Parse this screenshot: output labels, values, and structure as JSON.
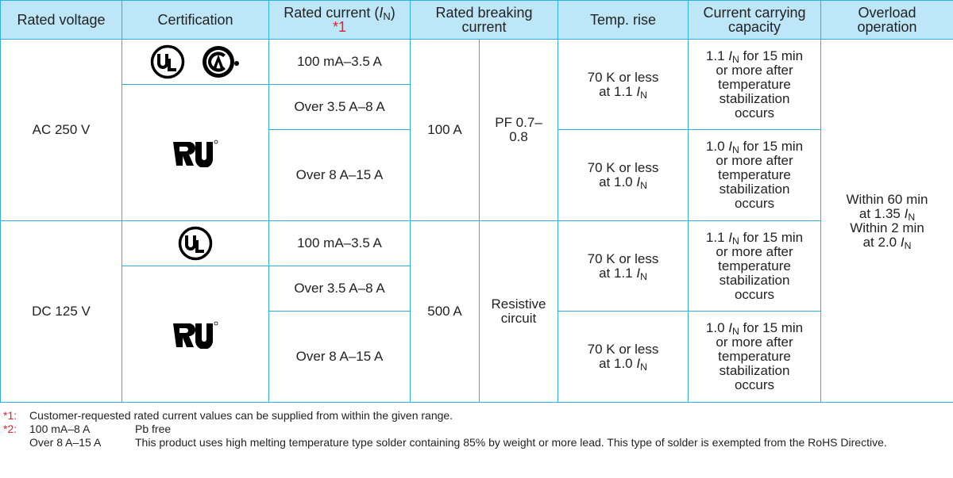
{
  "table": {
    "headers": {
      "voltage": "Rated voltage",
      "certification": "Certification",
      "current": [
        [
          "Rated current (",
          {
            "italic": "I"
          },
          {
            "sub": "N"
          },
          ")"
        ],
        [
          {
            "note": "*1"
          }
        ]
      ],
      "breaking": "Rated breaking current",
      "temp": "Temp. rise",
      "capacity": "Current carrying capacity",
      "overload": "Overload operation"
    },
    "rows": [
      {
        "voltage": "AC 250 V",
        "breaking": "100 A",
        "condition": "PF 0.7–0.8",
        "currents": [
          "100 mA–3.5 A",
          "Over 3.5 A–8 A",
          "Over 8 A–15 A"
        ],
        "temp": [
          [
            [
              "70 K or less"
            ],
            [
              "at 1.1 ",
              {
                "italic": "I"
              },
              {
                "sub": "N"
              }
            ]
          ],
          [
            [
              "70 K or less"
            ],
            [
              "at 1.0 ",
              {
                "italic": "I"
              },
              {
                "sub": "N"
              }
            ]
          ]
        ],
        "capacity": [
          [
            [
              "1.1 ",
              {
                "italic": "I"
              },
              {
                "sub": "N"
              },
              " for 15 min"
            ],
            [
              "or more after"
            ],
            [
              "temperature"
            ],
            [
              "stabilization"
            ],
            [
              "occurs"
            ]
          ],
          [
            [
              "1.0 ",
              {
                "italic": "I"
              },
              {
                "sub": "N"
              },
              " for 15 min"
            ],
            [
              "or more after"
            ],
            [
              "temperature"
            ],
            [
              "stabilization"
            ],
            [
              "occurs"
            ]
          ]
        ]
      },
      {
        "voltage": "DC 125 V",
        "breaking": "500 A",
        "condition": "Resistive circuit",
        "currents": [
          "100 mA–3.5 A",
          "Over 3.5 A–8 A",
          "Over 8 A–15 A"
        ],
        "temp": [
          [
            [
              "70 K or less"
            ],
            [
              "at 1.1 ",
              {
                "italic": "I"
              },
              {
                "sub": "N"
              }
            ]
          ],
          [
            [
              "70 K or less"
            ],
            [
              "at 1.0 ",
              {
                "italic": "I"
              },
              {
                "sub": "N"
              }
            ]
          ]
        ],
        "capacity": [
          [
            [
              "1.1 ",
              {
                "italic": "I"
              },
              {
                "sub": "N"
              },
              " for 15 min"
            ],
            [
              "or more after"
            ],
            [
              "temperature"
            ],
            [
              "stabilization"
            ],
            [
              "occurs"
            ]
          ],
          [
            [
              "1.0 ",
              {
                "italic": "I"
              },
              {
                "sub": "N"
              },
              " for 15 min"
            ],
            [
              "or more after"
            ],
            [
              "temperature"
            ],
            [
              "stabilization"
            ],
            [
              "occurs"
            ]
          ]
        ]
      }
    ],
    "overload": [
      [
        "Within 60 min"
      ],
      [
        "at 1.35 ",
        {
          "italic": "I"
        },
        {
          "sub": "N"
        }
      ],
      [
        "Within 2 min"
      ],
      [
        "at 2.0 ",
        {
          "italic": "I"
        },
        {
          "sub": "N"
        }
      ]
    ]
  },
  "notes": [
    {
      "mark": "*1:",
      "text": "Customer-requested rated current values can be supplied from within the given range."
    },
    {
      "mark": "*2:",
      "items": [
        {
          "range": "100 mA–8 A",
          "text": "Pb free"
        },
        {
          "range": "Over 8 A–15 A",
          "text": "This product uses high melting temperature type solder containing 85% by weight or more lead. This type of solder is exempted from the RoHS Directive."
        }
      ]
    }
  ]
}
